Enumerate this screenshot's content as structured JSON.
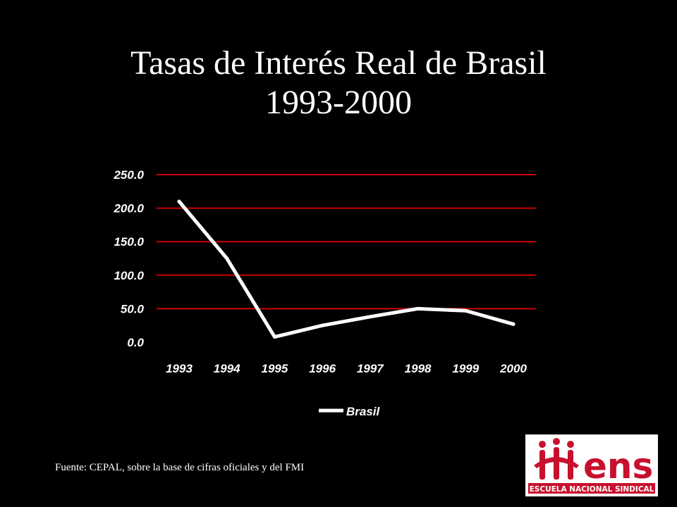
{
  "title": {
    "line1": "Tasas de Interés Real de Brasil",
    "line2": "1993-2000"
  },
  "chart_data": {
    "type": "line",
    "categories": [
      "1993",
      "1994",
      "1995",
      "1996",
      "1997",
      "1998",
      "1999",
      "2000"
    ],
    "series": [
      {
        "name": "Brasil",
        "values": [
          210.0,
          125.0,
          8.0,
          25.0,
          38.0,
          50.0,
          47.0,
          27.0
        ]
      }
    ],
    "y_ticks": [
      "0.0",
      "50.0",
      "100.0",
      "150.0",
      "200.0",
      "250.0"
    ],
    "ylim": [
      0,
      250
    ],
    "grid": true,
    "legend": "bottom",
    "colors": {
      "line": "#ffffff",
      "grid": "#cc0000",
      "background": "#000000"
    }
  },
  "source": "Fuente: CEPAL, sobre la base de cifras oficiales y del FMI",
  "logo": {
    "text": "ens",
    "caption": "ESCUELA NACIONAL SINDICAL",
    "color": "#c8102e"
  }
}
